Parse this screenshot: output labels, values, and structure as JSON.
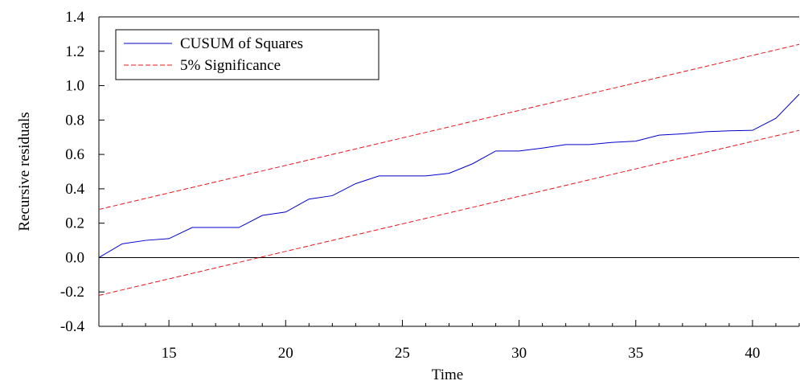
{
  "chart_data": {
    "type": "line",
    "title": "",
    "xlabel": "Time",
    "ylabel": "Recursive residuals",
    "xlim": [
      12,
      42
    ],
    "ylim": [
      -0.4,
      1.4
    ],
    "x_ticks": [
      15,
      20,
      25,
      30,
      35,
      40
    ],
    "y_ticks": [
      -0.4,
      -0.2,
      0.0,
      0.2,
      0.4,
      0.6,
      0.8,
      1.0,
      1.2,
      1.4
    ],
    "y_tick_labels": [
      "-0.4",
      "-0.2",
      "0.0",
      "0.2",
      "0.4",
      "0.6",
      "0.8",
      "1.0",
      "1.2",
      "1.4"
    ],
    "x_tick_labels": [
      "15",
      "20",
      "25",
      "30",
      "35",
      "40"
    ],
    "grid": false,
    "zero_line": true,
    "legend_position": "top-left",
    "series": [
      {
        "name": "CUSUM of Squares",
        "style": "solid",
        "color": "#0000cc",
        "x": [
          12,
          13,
          14,
          15,
          16,
          17,
          18,
          19,
          20,
          21,
          22,
          23,
          24,
          25,
          26,
          27,
          28,
          29,
          30,
          31,
          32,
          33,
          34,
          35,
          36,
          37,
          38,
          39,
          40,
          41,
          42
        ],
        "values": [
          0.0,
          0.08,
          0.1,
          0.11,
          0.175,
          0.175,
          0.175,
          0.245,
          0.265,
          0.34,
          0.36,
          0.43,
          0.475,
          0.475,
          0.475,
          0.49,
          0.545,
          0.62,
          0.62,
          0.637,
          0.657,
          0.657,
          0.67,
          0.677,
          0.712,
          0.72,
          0.732,
          0.737,
          0.74,
          0.81,
          0.95
        ]
      },
      {
        "name": "5% Significance",
        "style": "dashed",
        "color": "#e8141c",
        "x": [
          12,
          42
        ],
        "values": [
          0.28,
          1.24
        ]
      },
      {
        "name": "",
        "style": "dashed",
        "color": "#e8141c",
        "x": [
          12,
          42
        ],
        "values": [
          -0.22,
          0.74
        ]
      }
    ]
  }
}
